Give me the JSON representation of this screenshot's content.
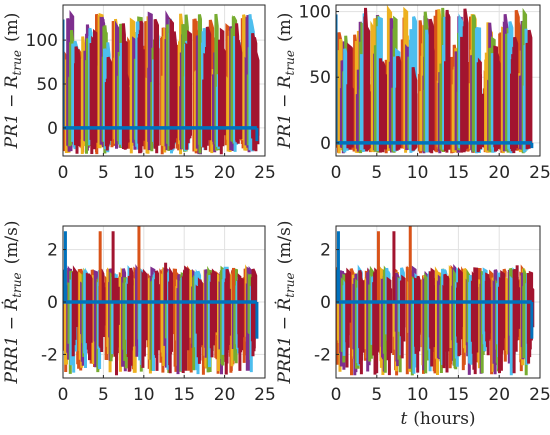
{
  "chart_data": [
    {
      "type": "line",
      "panel": "top-left",
      "ylabel": "PR1 − R_true (m)",
      "xlabel": "",
      "xlim": [
        0,
        25
      ],
      "ylim": [
        -32,
        140
      ],
      "xticks": [
        0,
        5,
        10,
        15,
        20,
        25
      ],
      "yticks": [
        0,
        50,
        100
      ],
      "grid": true,
      "legend": "none",
      "data_x_range": [
        0,
        24
      ],
      "trace_pattern": {
        "periods_per_day": 12,
        "peak": 130,
        "trough": -30,
        "baseline": 0
      },
      "series_colors": [
        "#0072BD",
        "#D95319",
        "#EDB120",
        "#7E2F8E",
        "#77AC30",
        "#4DBEEE",
        "#A2142F"
      ]
    },
    {
      "type": "line",
      "panel": "top-right",
      "ylabel": "PR1 − R_true (m)",
      "xlabel": "",
      "xlim": [
        0,
        25
      ],
      "ylim": [
        -10,
        105
      ],
      "xticks": [
        0,
        5,
        10,
        15,
        20,
        25
      ],
      "yticks": [
        0,
        50,
        100
      ],
      "grid": true,
      "legend": "none",
      "data_x_range": [
        0,
        24
      ],
      "trace_pattern": {
        "periods_per_day": 12,
        "peak": 103,
        "trough": -8,
        "baseline": 0
      },
      "series_colors": [
        "#0072BD",
        "#D95319",
        "#EDB120",
        "#7E2F8E",
        "#77AC30",
        "#4DBEEE",
        "#A2142F"
      ]
    },
    {
      "type": "line",
      "panel": "bottom-left",
      "ylabel": "PRR1 − Ṙ_true (m/s)",
      "xlabel": "",
      "xlim": [
        0,
        25
      ],
      "ylim": [
        -2.9,
        2.9
      ],
      "xticks": [
        0,
        5,
        10,
        15,
        20,
        25
      ],
      "yticks": [
        -2,
        0,
        2
      ],
      "grid": true,
      "legend": "none",
      "data_x_range": [
        0,
        24
      ],
      "trace_pattern": {
        "periods_per_day": 14,
        "peak": 1.3,
        "trough": -2.8,
        "baseline": 0
      },
      "spikes": [
        [
          0.3,
          2.7
        ],
        [
          4.6,
          2.7
        ],
        [
          6.2,
          2.7
        ],
        [
          9.4,
          2.9
        ],
        [
          12.7,
          1.5
        ],
        [
          21.1,
          1.3
        ]
      ],
      "series_colors": [
        "#0072BD",
        "#D95319",
        "#EDB120",
        "#7E2F8E",
        "#77AC30",
        "#4DBEEE",
        "#A2142F"
      ]
    },
    {
      "type": "line",
      "panel": "bottom-right",
      "ylabel": "PRR1 − Ṙ_true (m/s)",
      "xlabel": "t (hours)",
      "xlim": [
        0,
        25
      ],
      "ylim": [
        -2.9,
        2.9
      ],
      "xticks": [
        0,
        5,
        10,
        15,
        20,
        25
      ],
      "yticks": [
        -2,
        0,
        2
      ],
      "grid": true,
      "legend": "none",
      "data_x_range": [
        0,
        24
      ],
      "trace_pattern": {
        "periods_per_day": 14,
        "peak": 1.3,
        "trough": -2.8,
        "baseline": 0
      },
      "spikes": [
        [
          0.3,
          2.7
        ],
        [
          5.2,
          2.7
        ],
        [
          7.1,
          2.7
        ],
        [
          9.1,
          2.9
        ],
        [
          22.2,
          1.4
        ]
      ],
      "series_colors": [
        "#0072BD",
        "#D95319",
        "#EDB120",
        "#7E2F8E",
        "#77AC30",
        "#4DBEEE",
        "#A2142F"
      ]
    }
  ],
  "labels": {
    "top_left_ylabel_main": "PR1 − R",
    "top_left_ylabel_sub": "true",
    "top_left_ylabel_unit": "(m)",
    "top_right_ylabel_main": "PR1 − R",
    "top_right_ylabel_sub": "true",
    "top_right_ylabel_unit": "(m)",
    "bottom_left_ylabel_main": "PRR1 − Ṙ",
    "bottom_left_ylabel_sub": "true",
    "bottom_left_ylabel_unit": "(m/s)",
    "bottom_right_ylabel_main": "PRR1 − Ṙ",
    "bottom_right_ylabel_sub": "true",
    "bottom_right_ylabel_unit": "(m/s)",
    "xlabel_var": "t",
    "xlabel_unit": "(hours)"
  }
}
